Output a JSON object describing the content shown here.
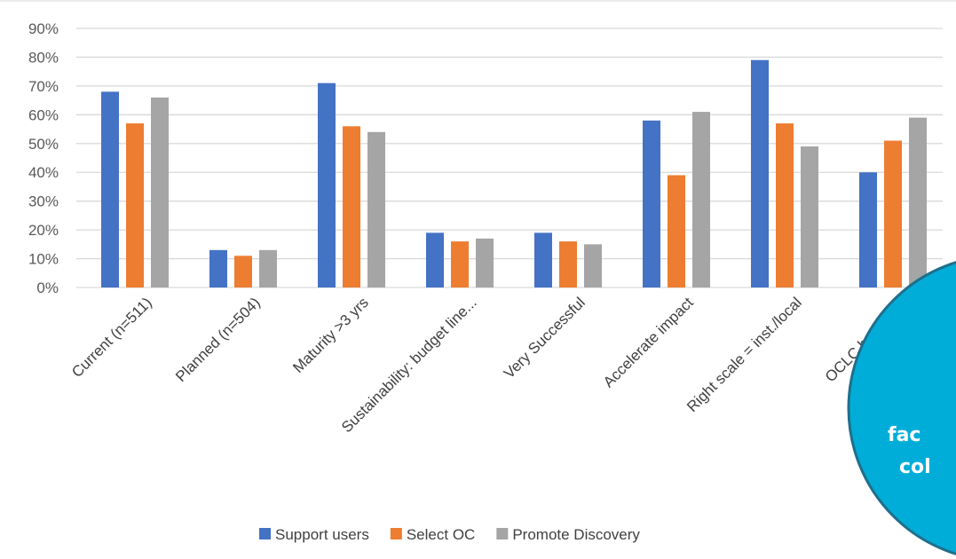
{
  "colors": {
    "support_users": "#4472C4",
    "select_oc": "#ED7D31",
    "promote_discovery": "#A5A5A5",
    "grid": "#D9D9D9",
    "callout_fill": "#00ADD8",
    "callout_border": "#1F6F8B"
  },
  "callout": {
    "line1": "fac",
    "line2": "col"
  },
  "chart_data": {
    "type": "bar",
    "title": "",
    "xlabel": "",
    "ylabel": "",
    "ylim": [
      0,
      0.9
    ],
    "yticks": [
      0,
      0.1,
      0.2,
      0.3,
      0.4,
      0.5,
      0.6,
      0.7,
      0.8,
      0.9
    ],
    "ytick_labels": [
      "0%",
      "10%",
      "20%",
      "30%",
      "40%",
      "50%",
      "60%",
      "70%",
      "80%",
      "90%"
    ],
    "grid": true,
    "legend_position": "bottom",
    "categories": [
      "Current (n=511)",
      "Planned (n=504)",
      "Maturity >3 yrs",
      "Sustainability: budget line...",
      "Very Successful",
      "Accelerate impact",
      "Right scale = inst./local",
      "OCLC has a role"
    ],
    "series": [
      {
        "name": "Support users",
        "color": "#4472C4",
        "values": [
          0.68,
          0.13,
          0.71,
          0.19,
          0.19,
          0.58,
          0.79,
          0.4
        ]
      },
      {
        "name": "Select OC",
        "color": "#ED7D31",
        "values": [
          0.57,
          0.11,
          0.56,
          0.16,
          0.16,
          0.39,
          0.57,
          0.51
        ]
      },
      {
        "name": "Promote Discovery",
        "color": "#A5A5A5",
        "values": [
          0.66,
          0.13,
          0.54,
          0.17,
          0.15,
          0.61,
          0.49,
          0.59
        ]
      }
    ]
  }
}
